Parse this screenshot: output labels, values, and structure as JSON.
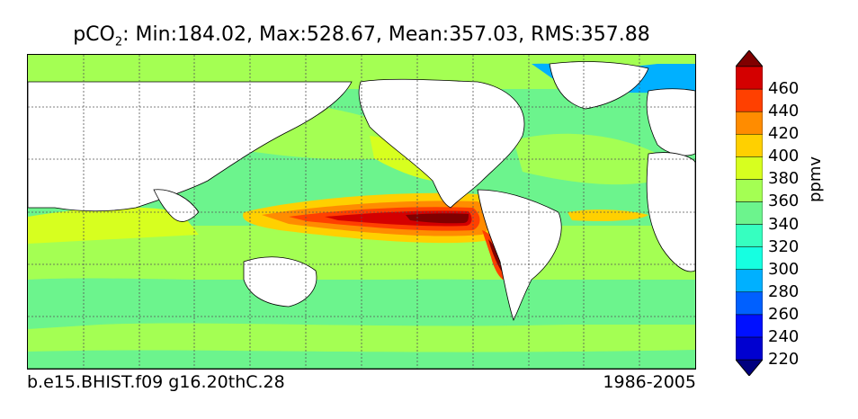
{
  "title": {
    "prefix": "pCO",
    "subscript": "2",
    "stats": ": Min:184.02, Max:528.67, Mean:357.03, RMS:357.88"
  },
  "footer": {
    "case_name": "b.e15.BHIST.f09 g16.20thC.28",
    "period": "1986-2005"
  },
  "colorbar": {
    "unit": "ppmv",
    "extend": "both",
    "levels": [
      {
        "value": 200,
        "color": "#00007f",
        "label": ""
      },
      {
        "value": 220,
        "color": "#0000d0",
        "label": "220"
      },
      {
        "value": 240,
        "color": "#0010ff",
        "label": "240"
      },
      {
        "value": 260,
        "color": "#0060ff",
        "label": "260"
      },
      {
        "value": 280,
        "color": "#00b0ff",
        "label": "280"
      },
      {
        "value": 300,
        "color": "#16ffe1",
        "label": "300"
      },
      {
        "value": 320,
        "color": "#36ffc0",
        "label": "320"
      },
      {
        "value": 340,
        "color": "#6cf48d",
        "label": "340"
      },
      {
        "value": 360,
        "color": "#a4ff53",
        "label": "360"
      },
      {
        "value": 380,
        "color": "#d7ff1f",
        "label": "380"
      },
      {
        "value": 400,
        "color": "#ffd000",
        "label": "400"
      },
      {
        "value": 420,
        "color": "#ff8c00",
        "label": "420"
      },
      {
        "value": 440,
        "color": "#ff4000",
        "label": "440"
      },
      {
        "value": 460,
        "color": "#d40000",
        "label": "460"
      },
      {
        "value": 480,
        "color": "#800000",
        "label": ""
      }
    ]
  },
  "map": {
    "projection": "equirectangular",
    "grid": "dotted",
    "land_color": "#ffffff",
    "coastline_color": "#000000"
  }
}
